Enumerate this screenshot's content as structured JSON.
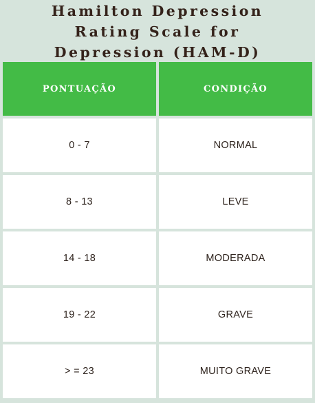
{
  "title": {
    "line1": "Hamilton Depression",
    "line2": "Rating Scale for",
    "line3": "Depression (HAM-D)"
  },
  "table": {
    "headers": [
      "PONTUAÇÃO",
      "CONDIÇÃO"
    ],
    "rows": [
      {
        "score": "0 - 7",
        "condition": "NORMAL"
      },
      {
        "score": "8 - 13",
        "condition": "LEVE"
      },
      {
        "score": "14 - 18",
        "condition": "MODERADA"
      },
      {
        "score": "19 - 22",
        "condition": "GRAVE"
      },
      {
        "score": "> = 23",
        "condition": "MUITO GRAVE"
      }
    ]
  },
  "colors": {
    "background": "#d6e4dc",
    "header": "#43bb46",
    "cell": "#ffffff",
    "text": "#2e231d"
  }
}
